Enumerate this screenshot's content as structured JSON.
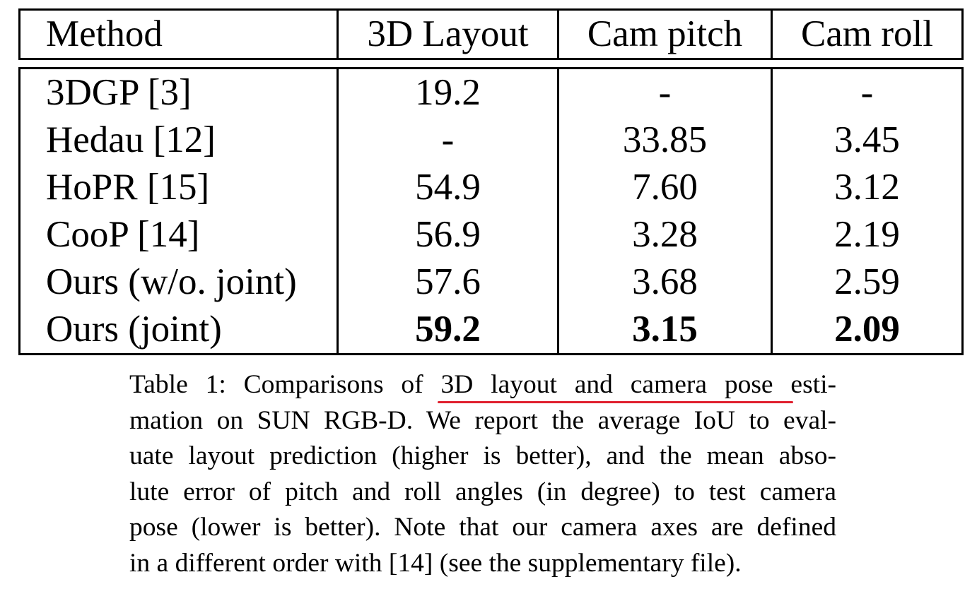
{
  "table": {
    "headers": [
      "Method",
      "3D Layout",
      "Cam pitch",
      "Cam roll"
    ],
    "rows": [
      {
        "method": "3DGP [3]",
        "layout": "19.2",
        "pitch": "-",
        "roll": "-"
      },
      {
        "method": "Hedau [12]",
        "layout": "-",
        "pitch": "33.85",
        "roll": "3.45"
      },
      {
        "method": "HoPR [15]",
        "layout": "54.9",
        "pitch": "7.60",
        "roll": "3.12"
      },
      {
        "method": "CooP [14]",
        "layout": "56.9",
        "pitch": "3.28",
        "roll": "2.19"
      },
      {
        "method": "Ours (w/o. joint)",
        "layout": "57.6",
        "pitch": "3.68",
        "roll": "2.59"
      },
      {
        "method": "Ours (joint)",
        "layout": "59.2",
        "pitch": "3.15",
        "roll": "2.09"
      }
    ]
  },
  "caption": {
    "line1_before": "Table 1: Comparisons of ",
    "line1_highlight": "3D layout and camera pose",
    "line1_after": " esti-",
    "line2": "mation on SUN RGB-D. We report the average IoU to eval-",
    "line3": "uate layout prediction (higher is better), and the mean abso-",
    "line4": "lute error of pitch and roll angles (in degree) to test camera",
    "line5": "pose (lower is better). Note that our camera axes are defined",
    "line6": "in a different order with [14] (see the supplementary file)."
  },
  "colors": {
    "highlight_underline": "#e0202e",
    "text": "#000000",
    "rules": "#000000"
  }
}
